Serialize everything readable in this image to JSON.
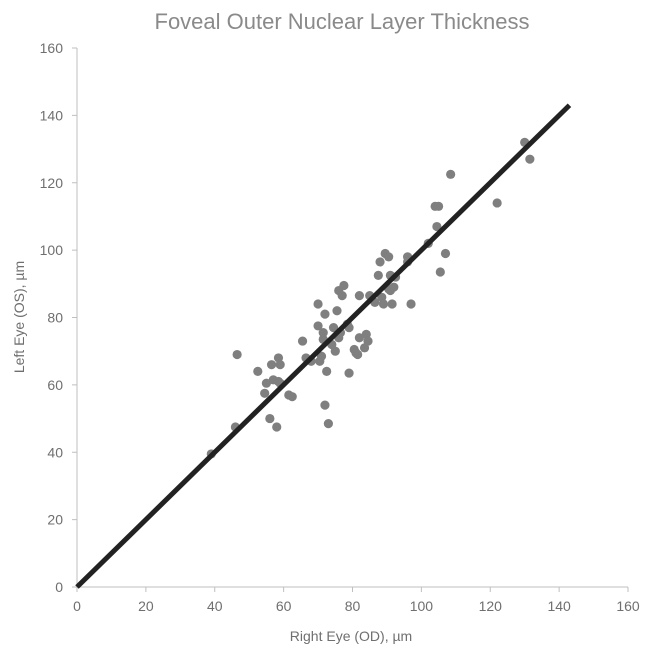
{
  "chart_data": {
    "type": "scatter",
    "title": "Foveal Outer Nuclear Layer Thickness",
    "xlabel": "Right Eye (OD), µm",
    "ylabel": "Left Eye (OS), µm",
    "xlim": [
      0,
      160
    ],
    "ylim": [
      0,
      160
    ],
    "x_ticks": [
      "0",
      "20",
      "40",
      "60",
      "80",
      "100",
      "120",
      "140",
      "160"
    ],
    "y_ticks": [
      "0",
      "20",
      "40",
      "60",
      "80",
      "100",
      "120",
      "140",
      "160"
    ],
    "grid": false,
    "legend": "none",
    "series": [
      {
        "color": "#7f7f7f",
        "points": [
          [
            39,
            39.5
          ],
          [
            46,
            47.5
          ],
          [
            46.5,
            69
          ],
          [
            52.5,
            64
          ],
          [
            54.5,
            57.5
          ],
          [
            55,
            60.5
          ],
          [
            56,
            50
          ],
          [
            56.5,
            66
          ],
          [
            57,
            61.5
          ],
          [
            58,
            47.5
          ],
          [
            58.5,
            68
          ],
          [
            58.5,
            61
          ],
          [
            59,
            60.5
          ],
          [
            59,
            66
          ],
          [
            61.5,
            57
          ],
          [
            62.5,
            56.5
          ],
          [
            65.5,
            73
          ],
          [
            66.5,
            68
          ],
          [
            68,
            67
          ],
          [
            70,
            84
          ],
          [
            70,
            77.5
          ],
          [
            70.5,
            67
          ],
          [
            71,
            68.5
          ],
          [
            71.5,
            73.5
          ],
          [
            71.5,
            75.5
          ],
          [
            72,
            81
          ],
          [
            72,
            54
          ],
          [
            72.5,
            64
          ],
          [
            73,
            48.5
          ],
          [
            74,
            72
          ],
          [
            74.5,
            77
          ],
          [
            75,
            70
          ],
          [
            75.5,
            82
          ],
          [
            76,
            88
          ],
          [
            76,
            74
          ],
          [
            76.5,
            75.5
          ],
          [
            77,
            86.5
          ],
          [
            77.5,
            89.5
          ],
          [
            78.5,
            78
          ],
          [
            79,
            77
          ],
          [
            79,
            63.5
          ],
          [
            80.5,
            70.5
          ],
          [
            81,
            69.5
          ],
          [
            81.5,
            69
          ],
          [
            82,
            86.5
          ],
          [
            82,
            74
          ],
          [
            83.5,
            71
          ],
          [
            84,
            75
          ],
          [
            84.5,
            73
          ],
          [
            85,
            86.5
          ],
          [
            86.5,
            84.5
          ],
          [
            87.5,
            92.5
          ],
          [
            88,
            96.5
          ],
          [
            88.5,
            86
          ],
          [
            89,
            84
          ],
          [
            89.5,
            99
          ],
          [
            90.5,
            98
          ],
          [
            90.5,
            88.5
          ],
          [
            91,
            92.5
          ],
          [
            91,
            88
          ],
          [
            91.5,
            84
          ],
          [
            92,
            89
          ],
          [
            92.5,
            92
          ],
          [
            96,
            98
          ],
          [
            96,
            96.5
          ],
          [
            97,
            84
          ],
          [
            102,
            102
          ],
          [
            104,
            113
          ],
          [
            104.5,
            107
          ],
          [
            105,
            113
          ],
          [
            105.5,
            93.5
          ],
          [
            107,
            99
          ],
          [
            108.5,
            122.5
          ],
          [
            122,
            114
          ],
          [
            130,
            132
          ],
          [
            131.5,
            127
          ]
        ]
      }
    ],
    "trendline": {
      "color": "#222222",
      "points": [
        [
          0,
          0
        ],
        [
          143,
          143
        ]
      ]
    }
  }
}
